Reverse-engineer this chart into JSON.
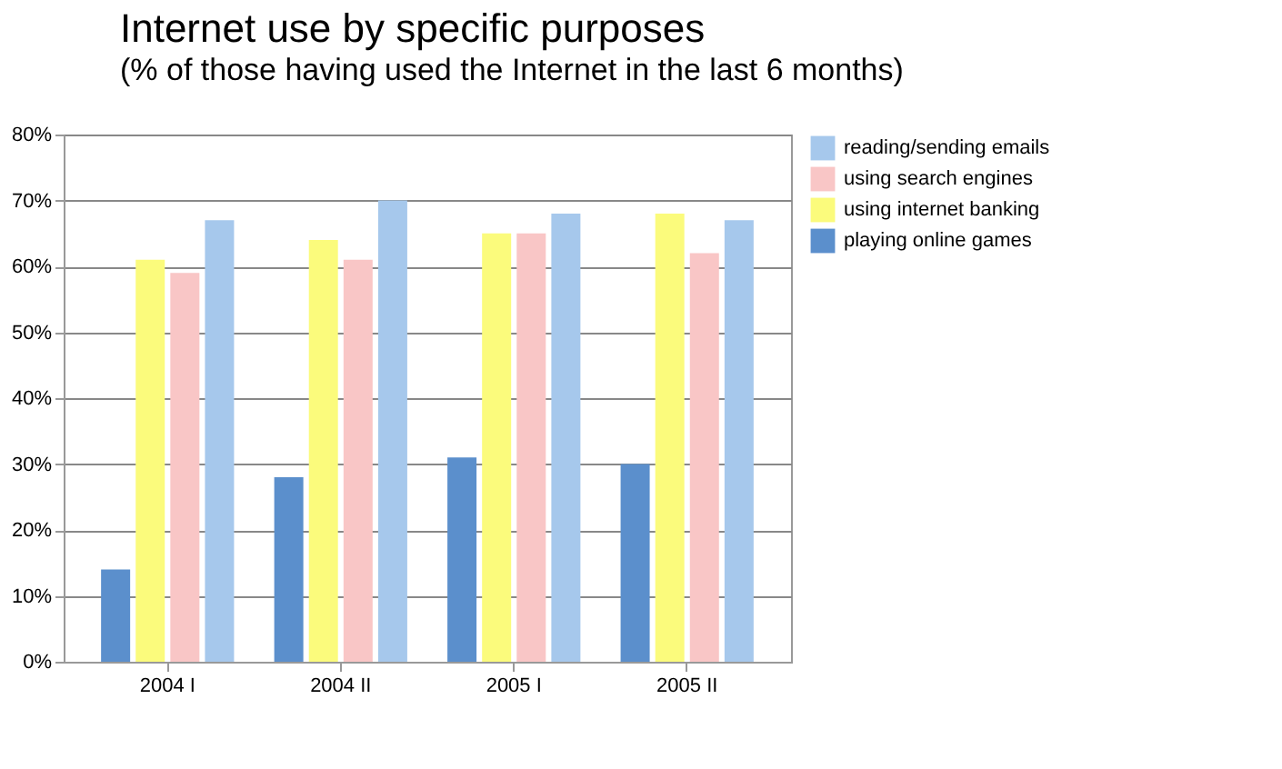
{
  "chart_data": {
    "type": "bar",
    "title": "Internet use by specific purposes",
    "subtitle": "(% of those having used the Internet in the last 6 months)",
    "categories": [
      "2004 I",
      "2004 II",
      "2005 I",
      "2005 II"
    ],
    "series": [
      {
        "name": "playing online games",
        "color": "#5b8fcc",
        "values": [
          14,
          28,
          31,
          30
        ]
      },
      {
        "name": "using internet banking",
        "color": "#fbfb7c",
        "values": [
          61,
          64,
          65,
          68
        ]
      },
      {
        "name": "using search engines",
        "color": "#f9c6c6",
        "values": [
          59,
          61,
          65,
          62
        ]
      },
      {
        "name": "reading/sending emails",
        "color": "#a6c8ec",
        "values": [
          67,
          70,
          68,
          67
        ]
      }
    ],
    "ylim": [
      0,
      80
    ],
    "yticks": [
      {
        "value": 0,
        "label": "0%"
      },
      {
        "value": 10,
        "label": "10%"
      },
      {
        "value": 20,
        "label": "20%"
      },
      {
        "value": 30,
        "label": "30%"
      },
      {
        "value": 40,
        "label": "40%"
      },
      {
        "value": 50,
        "label": "50%"
      },
      {
        "value": 60,
        "label": "60%"
      },
      {
        "value": 70,
        "label": "70%"
      },
      {
        "value": 80,
        "label": "80%"
      }
    ],
    "grid": "y",
    "legend": "right"
  }
}
